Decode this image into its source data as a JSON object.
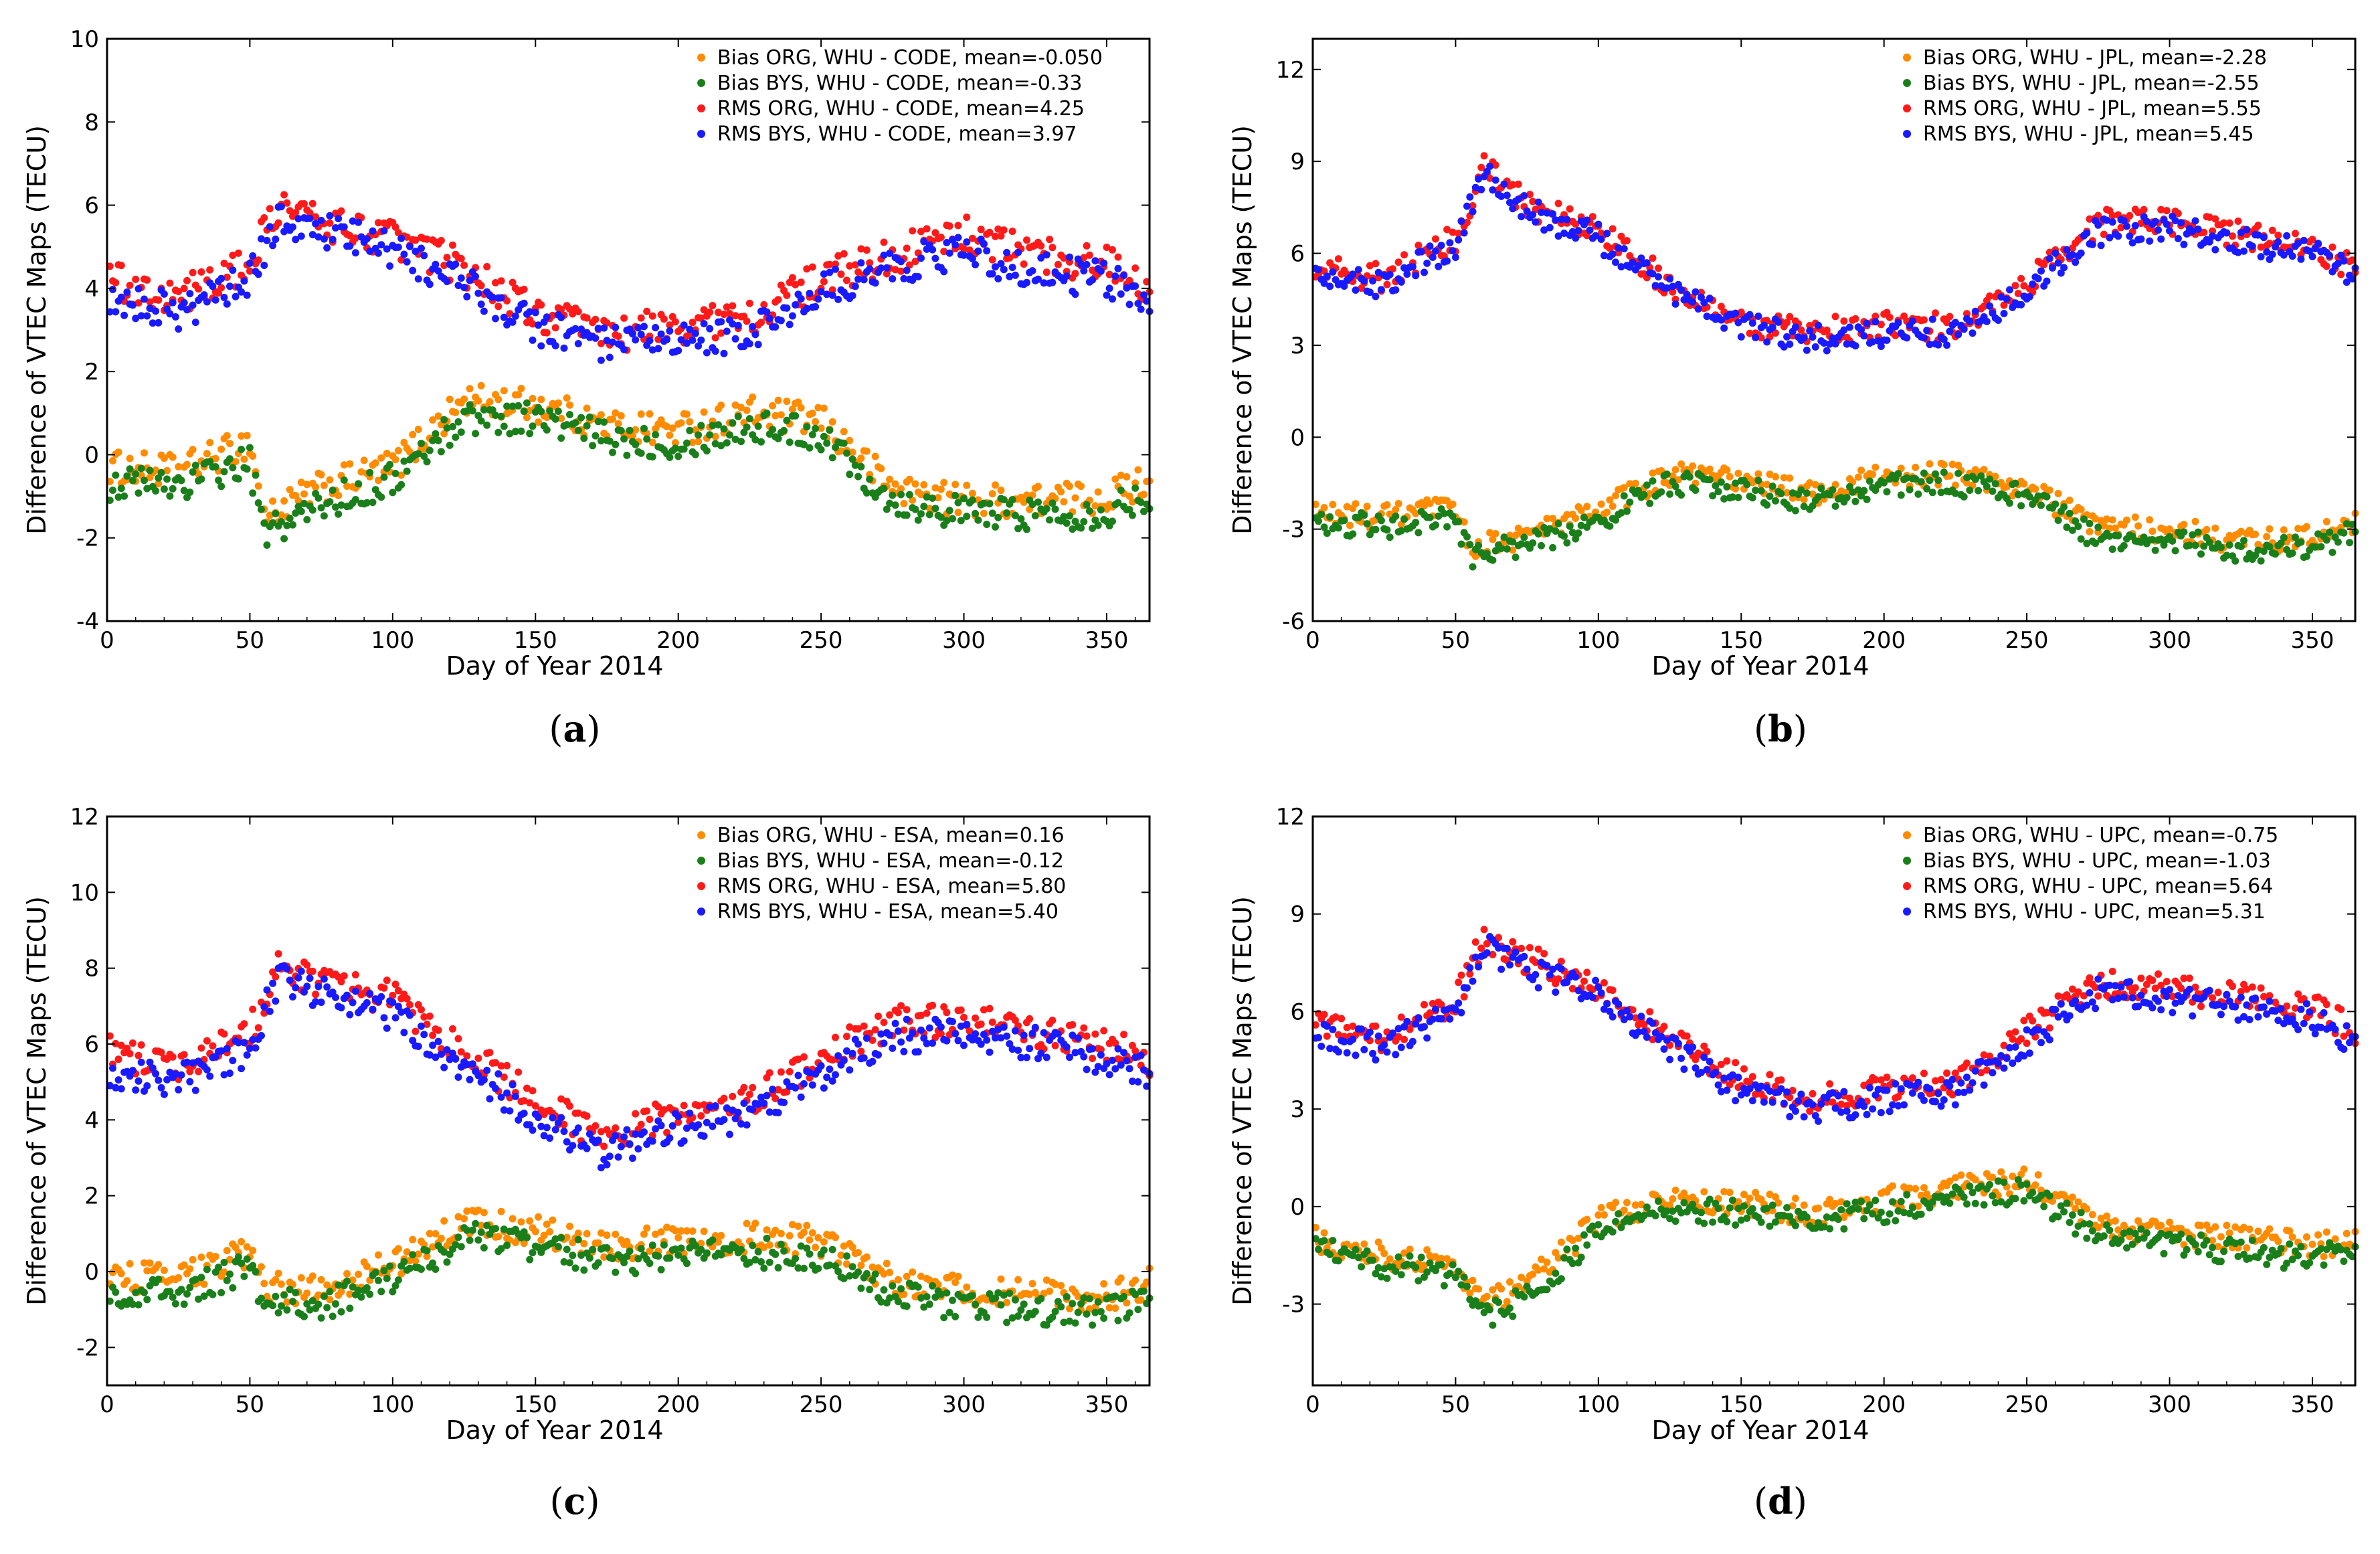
{
  "figure": {
    "colors": {
      "bias_org": "#ff8c00",
      "bias_bys": "#1a7f1a",
      "rms_org": "#ff1a1a",
      "rms_bys": "#1a1aff"
    }
  },
  "chart_data": [
    {
      "type": "scatter",
      "panel_label": "(a)",
      "label_letter": "a",
      "xlabel": "Day of Year 2014",
      "ylabel": "Difference of VTEC Maps (TECU)",
      "xlim": [
        0,
        365
      ],
      "ylim": [
        -4,
        10
      ],
      "xticks": [
        "0",
        "50",
        "100",
        "150",
        "200",
        "250",
        "300",
        "350"
      ],
      "yticks": [
        "-4",
        "-2",
        "0",
        "2",
        "4",
        "6",
        "8",
        "10"
      ],
      "legend_position": "top-right",
      "series": [
        {
          "name": "Bias ORG, WHU - CODE, mean=-0.050",
          "key": "bias_org",
          "x": [
            0,
            25,
            50,
            55,
            75,
            100,
            125,
            150,
            175,
            200,
            225,
            250,
            275,
            300,
            325,
            350,
            365
          ],
          "y": [
            -0.3,
            -0.4,
            0.3,
            -1.5,
            -0.8,
            -0.3,
            1.3,
            1.2,
            0.7,
            0.6,
            1.0,
            0.8,
            -0.8,
            -1.1,
            -1.1,
            -1.0,
            -0.6
          ]
        },
        {
          "name": "Bias BYS, WHU - CODE, mean=-0.33",
          "key": "bias_bys",
          "x": [
            0,
            25,
            50,
            55,
            75,
            100,
            125,
            150,
            175,
            200,
            225,
            250,
            275,
            300,
            325,
            350,
            365
          ],
          "y": [
            -0.7,
            -0.7,
            -0.2,
            -1.9,
            -1.2,
            -0.6,
            0.9,
            0.9,
            0.4,
            0.3,
            0.7,
            0.5,
            -1.1,
            -1.4,
            -1.4,
            -1.4,
            -0.9
          ]
        },
        {
          "name": "RMS ORG, WHU - CODE, mean=4.25",
          "key": "rms_org",
          "x": [
            0,
            25,
            50,
            60,
            75,
            100,
            125,
            150,
            175,
            200,
            225,
            250,
            275,
            300,
            325,
            350,
            365
          ],
          "y": [
            4.2,
            3.8,
            4.6,
            6.0,
            5.6,
            5.2,
            4.5,
            3.4,
            2.9,
            3.1,
            3.3,
            4.2,
            4.8,
            5.3,
            4.8,
            4.6,
            4.0
          ]
        },
        {
          "name": "RMS BYS, WHU - CODE, mean=3.97",
          "key": "rms_bys",
          "x": [
            0,
            25,
            50,
            60,
            75,
            100,
            125,
            150,
            175,
            200,
            225,
            250,
            275,
            300,
            325,
            350,
            365
          ],
          "y": [
            3.9,
            3.4,
            4.2,
            5.7,
            5.4,
            4.9,
            4.1,
            3.1,
            2.6,
            2.7,
            2.9,
            3.9,
            4.5,
            4.9,
            4.4,
            4.2,
            3.7
          ]
        }
      ]
    },
    {
      "type": "scatter",
      "panel_label": "(b)",
      "label_letter": "b",
      "xlabel": "Day of Year 2014",
      "ylabel": "Difference of VTEC Maps (TECU)",
      "xlim": [
        0,
        365
      ],
      "ylim": [
        -6,
        13
      ],
      "xticks": [
        "0",
        "50",
        "100",
        "150",
        "200",
        "250",
        "300",
        "350"
      ],
      "yticks": [
        "-6",
        "-3",
        "0",
        "3",
        "6",
        "9",
        "12"
      ],
      "legend_position": "top-right",
      "series": [
        {
          "name": "Bias ORG, WHU - JPL, mean=-2.28",
          "key": "bias_org",
          "x": [
            0,
            25,
            50,
            55,
            75,
            100,
            125,
            150,
            175,
            200,
            225,
            250,
            275,
            300,
            325,
            350,
            365
          ],
          "y": [
            -2.5,
            -2.6,
            -2.3,
            -3.6,
            -3.2,
            -2.4,
            -1.2,
            -1.4,
            -1.8,
            -1.3,
            -1.2,
            -1.6,
            -3.0,
            -3.0,
            -3.4,
            -3.3,
            -2.8
          ]
        },
        {
          "name": "Bias BYS, WHU - JPL, mean=-2.55",
          "key": "bias_bys",
          "x": [
            0,
            25,
            50,
            55,
            75,
            100,
            125,
            150,
            175,
            200,
            225,
            250,
            275,
            300,
            325,
            350,
            365
          ],
          "y": [
            -2.8,
            -2.9,
            -2.6,
            -3.9,
            -3.5,
            -2.7,
            -1.5,
            -1.7,
            -2.1,
            -1.6,
            -1.5,
            -1.9,
            -3.3,
            -3.3,
            -3.7,
            -3.6,
            -3.1
          ]
        },
        {
          "name": "RMS ORG, WHU - JPL, mean=5.55",
          "key": "rms_org",
          "x": [
            0,
            25,
            50,
            60,
            75,
            100,
            125,
            150,
            175,
            200,
            225,
            250,
            275,
            300,
            325,
            350,
            365
          ],
          "y": [
            5.5,
            5.2,
            6.5,
            8.8,
            7.6,
            6.7,
            5.0,
            3.8,
            3.4,
            3.7,
            3.6,
            5.0,
            7.0,
            7.0,
            6.6,
            6.2,
            5.5
          ]
        },
        {
          "name": "RMS BYS, WHU - JPL, mean=5.45",
          "key": "rms_bys",
          "x": [
            0,
            25,
            50,
            60,
            75,
            100,
            125,
            150,
            175,
            200,
            225,
            250,
            275,
            300,
            325,
            350,
            365
          ],
          "y": [
            5.3,
            5.0,
            6.3,
            8.6,
            7.4,
            6.5,
            4.8,
            3.6,
            3.2,
            3.4,
            3.4,
            4.8,
            6.7,
            6.8,
            6.4,
            6.0,
            5.3
          ]
        }
      ]
    },
    {
      "type": "scatter",
      "panel_label": "(c)",
      "label_letter": "c",
      "xlabel": "Day of Year 2014",
      "ylabel": "Difference of VTEC Maps (TECU)",
      "xlim": [
        0,
        365
      ],
      "ylim": [
        -3,
        12
      ],
      "xticks": [
        "0",
        "50",
        "100",
        "150",
        "200",
        "250",
        "300",
        "350"
      ],
      "yticks": [
        "-2",
        "0",
        "2",
        "4",
        "6",
        "8",
        "10",
        "12"
      ],
      "legend_position": "top-right",
      "series": [
        {
          "name": "Bias ORG, WHU - ESA, mean=0.16",
          "key": "bias_org",
          "x": [
            0,
            25,
            50,
            55,
            75,
            100,
            125,
            150,
            175,
            200,
            225,
            250,
            275,
            300,
            325,
            350,
            365
          ],
          "y": [
            -0.1,
            -0.2,
            0.5,
            -0.4,
            -0.5,
            0.2,
            1.3,
            1.1,
            0.7,
            0.8,
            0.9,
            0.8,
            -0.2,
            -0.5,
            -0.6,
            -0.7,
            -0.3
          ]
        },
        {
          "name": "Bias BYS, WHU - ESA, mean=-0.12",
          "key": "bias_bys",
          "x": [
            0,
            25,
            50,
            55,
            75,
            100,
            125,
            150,
            175,
            200,
            225,
            250,
            275,
            300,
            325,
            350,
            365
          ],
          "y": [
            -0.5,
            -0.6,
            0.1,
            -0.8,
            -0.9,
            -0.2,
            0.9,
            0.7,
            0.3,
            0.4,
            0.5,
            0.4,
            -0.6,
            -0.9,
            -1.0,
            -1.1,
            -0.7
          ]
        },
        {
          "name": "RMS ORG, WHU - ESA, mean=5.80",
          "key": "rms_org",
          "x": [
            0,
            25,
            50,
            60,
            75,
            100,
            125,
            150,
            175,
            200,
            225,
            250,
            275,
            300,
            325,
            350,
            365
          ],
          "y": [
            5.8,
            5.4,
            6.3,
            8.0,
            7.6,
            7.2,
            5.8,
            4.5,
            3.5,
            4.2,
            4.5,
            5.6,
            6.6,
            6.6,
            6.3,
            6.0,
            5.6
          ]
        },
        {
          "name": "RMS BYS, WHU - ESA, mean=5.40",
          "key": "rms_bys",
          "x": [
            0,
            25,
            50,
            60,
            75,
            100,
            125,
            150,
            175,
            200,
            225,
            250,
            275,
            300,
            325,
            350,
            365
          ],
          "y": [
            5.3,
            5.0,
            5.9,
            7.7,
            7.3,
            6.8,
            5.4,
            4.1,
            3.1,
            3.8,
            4.1,
            5.2,
            6.2,
            6.3,
            6.0,
            5.6,
            5.2
          ]
        }
      ]
    },
    {
      "type": "scatter",
      "panel_label": "(d)",
      "label_letter": "d",
      "xlabel": "Day of Year 2014",
      "ylabel": "Difference of VTEC Maps (TECU)",
      "xlim": [
        0,
        365
      ],
      "ylim": [
        -5.5,
        12
      ],
      "xticks": [
        "0",
        "50",
        "100",
        "150",
        "200",
        "250",
        "300",
        "350"
      ],
      "yticks": [
        "-3",
        "0",
        "3",
        "6",
        "9",
        "12"
      ],
      "legend_position": "top-right",
      "series": [
        {
          "name": "Bias ORG, WHU - UPC, mean=-0.75",
          "key": "bias_org",
          "x": [
            0,
            25,
            50,
            60,
            75,
            100,
            125,
            150,
            175,
            200,
            225,
            250,
            275,
            300,
            325,
            350,
            365
          ],
          "y": [
            -1.0,
            -1.5,
            -1.8,
            -3.0,
            -2.4,
            -0.4,
            0.2,
            0.1,
            -0.2,
            0.2,
            0.6,
            0.8,
            -0.6,
            -0.8,
            -1.0,
            -1.2,
            -1.0
          ]
        },
        {
          "name": "Bias BYS, WHU - UPC, mean=-1.03",
          "key": "bias_bys",
          "x": [
            0,
            25,
            50,
            60,
            75,
            100,
            125,
            150,
            175,
            200,
            225,
            250,
            275,
            300,
            325,
            350,
            365
          ],
          "y": [
            -1.3,
            -1.8,
            -2.1,
            -3.4,
            -2.8,
            -0.8,
            -0.1,
            -0.2,
            -0.5,
            -0.1,
            0.3,
            0.5,
            -0.9,
            -1.1,
            -1.4,
            -1.6,
            -1.3
          ]
        },
        {
          "name": "RMS ORG, WHU - UPC, mean=5.64",
          "key": "rms_org",
          "x": [
            0,
            25,
            50,
            60,
            75,
            100,
            125,
            150,
            175,
            200,
            225,
            250,
            275,
            300,
            325,
            350,
            365
          ],
          "y": [
            5.6,
            5.2,
            6.3,
            8.3,
            7.6,
            6.8,
            5.2,
            3.9,
            3.3,
            3.6,
            3.8,
            5.4,
            6.9,
            6.7,
            6.4,
            6.1,
            5.4
          ]
        },
        {
          "name": "RMS BYS, WHU - UPC, mean=5.31",
          "key": "rms_bys",
          "x": [
            0,
            25,
            50,
            60,
            75,
            100,
            125,
            150,
            175,
            200,
            225,
            250,
            275,
            300,
            325,
            350,
            365
          ],
          "y": [
            5.3,
            4.9,
            6.0,
            8.0,
            7.3,
            6.5,
            4.9,
            3.6,
            3.0,
            3.3,
            3.5,
            5.1,
            6.6,
            6.4,
            6.1,
            5.8,
            5.1
          ]
        }
      ]
    }
  ]
}
